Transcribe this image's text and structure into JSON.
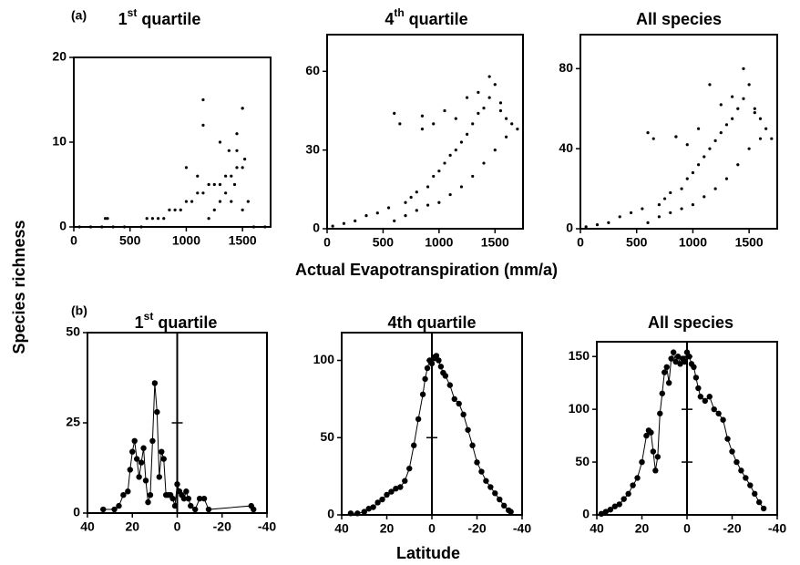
{
  "labels": {
    "a": "(a)",
    "b": "(b)",
    "y": "Species richness",
    "x_top": "Actual Evapotranspiration (mm/a)",
    "x_bottom": "Latitude"
  },
  "chart_data": [
    {
      "type": "scatter",
      "title_parts": [
        {
          "text": "1"
        },
        {
          "text": "st",
          "sup": true
        },
        {
          "text": " quartile"
        }
      ],
      "x": [
        50,
        150,
        250,
        280,
        300,
        350,
        450,
        600,
        650,
        700,
        750,
        800,
        850,
        900,
        950,
        1000,
        1050,
        1100,
        1150,
        1200,
        1250,
        1300,
        1350,
        1400,
        1450,
        1500,
        1550,
        1600,
        1700,
        1150,
        1200,
        1250,
        1300,
        1350,
        1400,
        1450,
        1500,
        1000,
        1100,
        1150,
        1300,
        1450,
        1500,
        1500,
        1380,
        1520,
        1430
      ],
      "values": [
        0,
        0,
        0,
        1,
        1,
        0,
        0,
        0,
        1,
        1,
        1,
        1,
        2,
        2,
        2,
        3,
        3,
        4,
        4,
        5,
        5,
        5,
        6,
        6,
        7,
        7,
        3,
        0,
        0,
        15,
        1,
        2,
        3,
        4,
        3,
        9,
        14,
        7,
        6,
        12,
        10,
        11,
        2,
        14,
        9,
        8,
        5
      ],
      "color": "#000000",
      "xlim": [
        0,
        1750
      ],
      "xticks": [
        0,
        500,
        1000,
        1500
      ],
      "ylim": [
        0,
        20
      ],
      "yticks": [
        0,
        10,
        20
      ]
    },
    {
      "type": "scatter",
      "title_parts": [
        {
          "text": "4"
        },
        {
          "text": "th",
          "sup": true
        },
        {
          "text": " quartile"
        }
      ],
      "x": [
        50,
        150,
        250,
        350,
        450,
        550,
        600,
        650,
        700,
        750,
        800,
        850,
        900,
        950,
        1000,
        1050,
        1100,
        1150,
        1200,
        1250,
        1300,
        1350,
        1400,
        1450,
        1500,
        1550,
        1600,
        1650,
        1700,
        600,
        700,
        800,
        900,
        1000,
        1100,
        1200,
        1300,
        1400,
        1500,
        1600,
        1250,
        1350,
        1450,
        1550,
        1150,
        1050,
        950,
        850
      ],
      "values": [
        1,
        2,
        3,
        5,
        6,
        8,
        44,
        40,
        10,
        12,
        14,
        38,
        16,
        20,
        22,
        25,
        28,
        30,
        33,
        36,
        40,
        44,
        46,
        50,
        55,
        45,
        42,
        40,
        38,
        3,
        5,
        7,
        9,
        10,
        13,
        16,
        20,
        25,
        30,
        35,
        50,
        52,
        58,
        48,
        42,
        45,
        40,
        43
      ],
      "color": "#000000",
      "xlim": [
        0,
        1750
      ],
      "xticks": [
        0,
        500,
        1000,
        1500
      ],
      "ylim": [
        0,
        74
      ],
      "yticks": [
        0,
        30,
        60
      ]
    },
    {
      "type": "scatter",
      "title_parts": [
        {
          "text": "All species"
        }
      ],
      "x": [
        50,
        150,
        250,
        350,
        450,
        550,
        600,
        650,
        700,
        750,
        800,
        850,
        900,
        950,
        1000,
        1050,
        1100,
        1150,
        1200,
        1250,
        1300,
        1350,
        1400,
        1450,
        1500,
        1550,
        1600,
        1650,
        1700,
        600,
        700,
        800,
        900,
        1000,
        1100,
        1200,
        1300,
        1400,
        1500,
        1600,
        1250,
        1350,
        1450,
        1550,
        1150,
        1050,
        950,
        850
      ],
      "values": [
        1,
        2,
        3,
        6,
        8,
        10,
        48,
        45,
        12,
        15,
        18,
        46,
        20,
        25,
        28,
        32,
        36,
        40,
        44,
        48,
        52,
        55,
        60,
        65,
        72,
        58,
        55,
        50,
        45,
        3,
        6,
        8,
        10,
        12,
        16,
        20,
        25,
        32,
        40,
        45,
        62,
        66,
        80,
        60,
        72,
        50,
        42,
        46
      ],
      "color": "#000000",
      "xlim": [
        0,
        1750
      ],
      "xticks": [
        0,
        500,
        1000,
        1500
      ],
      "ylim": [
        0,
        97
      ],
      "yticks": [
        0,
        40,
        80
      ]
    },
    {
      "type": "line",
      "title_parts": [
        {
          "text": "1"
        },
        {
          "text": "st",
          "sup": true
        },
        {
          "text": " quartile"
        }
      ],
      "x": [
        33,
        28,
        26,
        24,
        22,
        21,
        20,
        19,
        18,
        17,
        16,
        15,
        14,
        13,
        12,
        11,
        10,
        9,
        8,
        7,
        6,
        5,
        4,
        3,
        2,
        1,
        0,
        -1,
        -2,
        -3,
        -4,
        -5,
        -6,
        -8,
        -10,
        -12,
        -14,
        -33,
        -34
      ],
      "values": [
        1,
        1,
        2,
        5,
        6,
        12,
        17,
        20,
        15,
        10,
        14,
        18,
        9,
        3,
        5,
        20,
        36,
        28,
        10,
        17,
        15,
        5,
        5,
        5,
        4,
        2,
        8,
        6,
        5,
        4,
        6,
        4,
        2,
        1,
        4,
        4,
        1,
        2,
        1
      ],
      "color": "#000000",
      "xlim": [
        40,
        -40
      ],
      "xticks": [
        40,
        20,
        0,
        -20,
        -40
      ],
      "ylim": [
        0,
        50
      ],
      "yticks": [
        0,
        25,
        50
      ],
      "center_axis": true
    },
    {
      "type": "line",
      "title_parts": [
        {
          "text": "4th quartile"
        }
      ],
      "x": [
        36,
        33,
        30,
        28,
        26,
        24,
        22,
        20,
        18,
        16,
        14,
        12,
        10,
        8,
        6,
        4,
        3,
        2,
        1,
        0,
        -1,
        -2,
        -3,
        -4,
        -5,
        -6,
        -8,
        -10,
        -12,
        -14,
        -16,
        -18,
        -20,
        -22,
        -24,
        -26,
        -28,
        -30,
        -32,
        -34,
        -35
      ],
      "values": [
        1,
        1,
        2,
        4,
        5,
        8,
        10,
        13,
        15,
        17,
        18,
        22,
        30,
        45,
        62,
        78,
        88,
        95,
        100,
        98,
        102,
        103,
        100,
        96,
        92,
        90,
        84,
        75,
        72,
        65,
        55,
        45,
        34,
        28,
        22,
        18,
        14,
        10,
        6,
        3,
        2
      ],
      "color": "#000000",
      "xlim": [
        40,
        -40
      ],
      "xticks": [
        40,
        20,
        0,
        -20,
        -40
      ],
      "ylim": [
        0,
        118
      ],
      "yticks": [
        0,
        50,
        100
      ],
      "center_axis": true
    },
    {
      "type": "line",
      "title_parts": [
        {
          "text": "All species"
        }
      ],
      "x": [
        38,
        36,
        34,
        32,
        30,
        28,
        26,
        24,
        22,
        20,
        18,
        17,
        16,
        15,
        14,
        13,
        12,
        11,
        10,
        9,
        8,
        7,
        6,
        5,
        4,
        3,
        2,
        1,
        0,
        -1,
        -2,
        -3,
        -4,
        -5,
        -6,
        -8,
        -10,
        -12,
        -14,
        -16,
        -18,
        -20,
        -22,
        -24,
        -26,
        -28,
        -30,
        -32,
        -34
      ],
      "values": [
        1,
        3,
        5,
        8,
        10,
        15,
        20,
        28,
        35,
        50,
        75,
        80,
        78,
        60,
        42,
        55,
        96,
        115,
        135,
        140,
        125,
        148,
        154,
        145,
        150,
        143,
        148,
        145,
        154,
        150,
        143,
        140,
        130,
        120,
        112,
        108,
        112,
        100,
        96,
        90,
        72,
        60,
        50,
        42,
        35,
        28,
        20,
        12,
        6
      ],
      "color": "#000000",
      "xlim": [
        40,
        -40
      ],
      "xticks": [
        40,
        20,
        0,
        -20,
        -40
      ],
      "ylim": [
        0,
        164
      ],
      "yticks": [
        0,
        50,
        100,
        150
      ],
      "center_axis": true
    }
  ]
}
